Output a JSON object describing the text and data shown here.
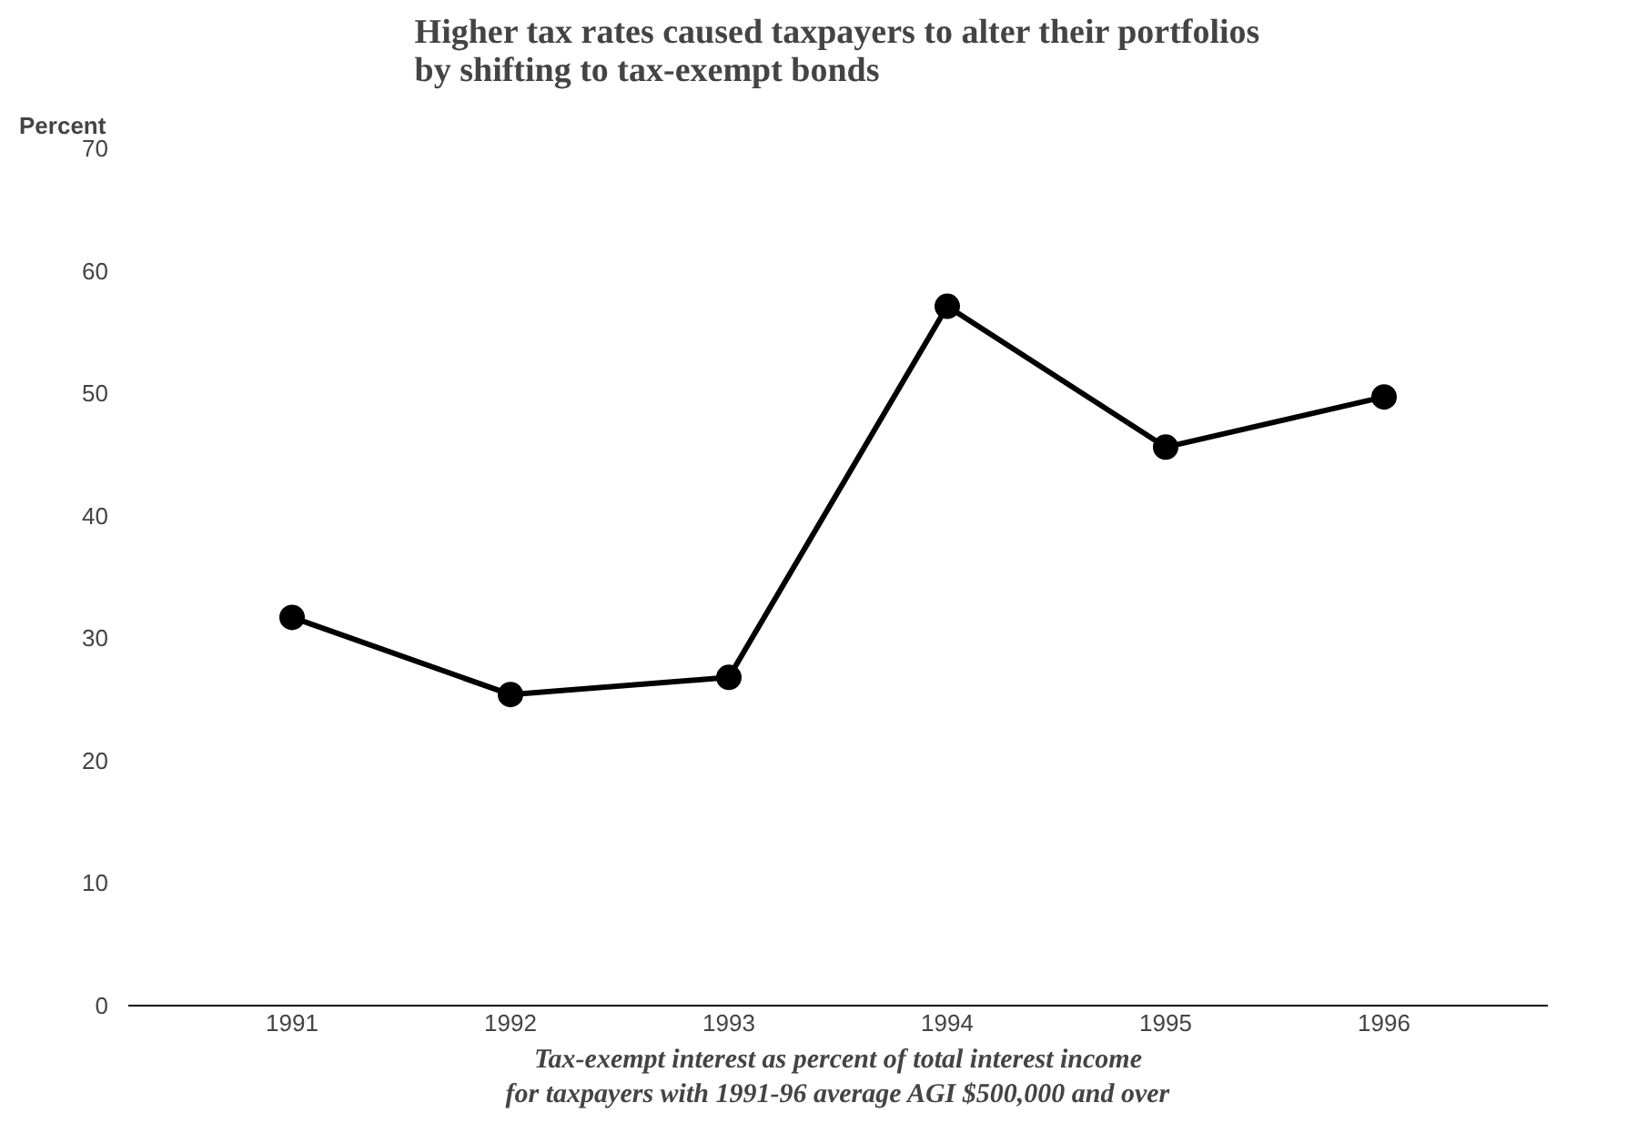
{
  "chart_data": {
    "type": "line",
    "title": "Higher tax rates caused taxpayers to alter their portfolios\nby shifting to tax-exempt bonds",
    "ylabel": "Percent",
    "xlabel": "Tax-exempt interest as percent of total interest income\nfor taxpayers with 1991-96 average AGI $500,000 and over",
    "categories": [
      "1991",
      "1992",
      "1993",
      "1994",
      "1995",
      "1996"
    ],
    "series": [
      {
        "color": "#000000",
        "values": [
          31.7,
          25.4,
          26.8,
          57.1,
          45.6,
          49.7
        ]
      }
    ],
    "ylim": [
      0,
      70
    ],
    "yticks": [
      0,
      10,
      20,
      30,
      40,
      50,
      60,
      70
    ],
    "grid": false,
    "marker": "circle",
    "line_style": "solid"
  }
}
